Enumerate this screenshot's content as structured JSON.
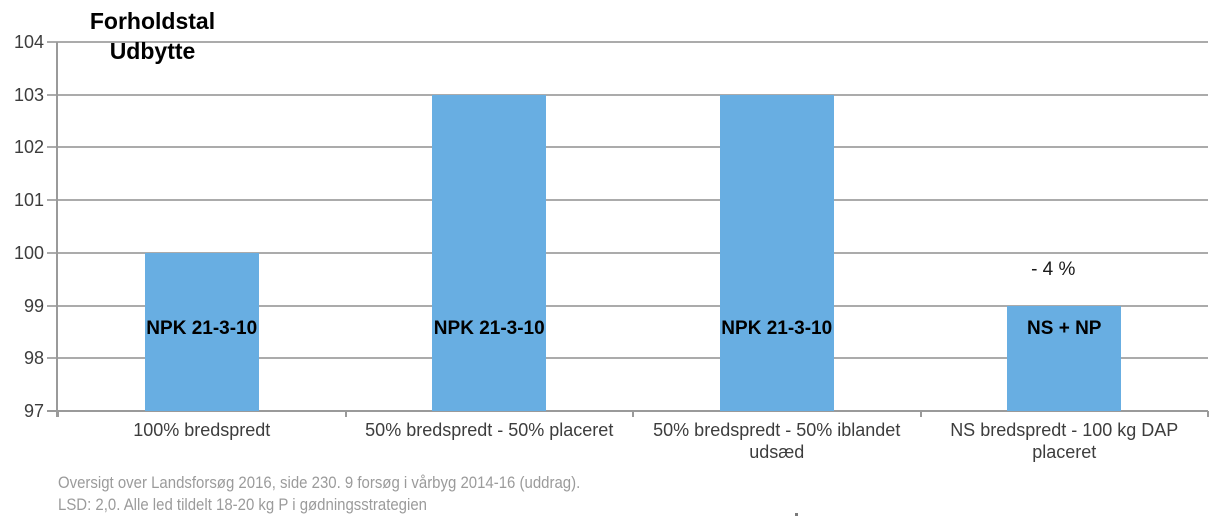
{
  "chart_data": {
    "type": "bar",
    "title_lines": [
      "Forholdstal",
      "Udbytte"
    ],
    "categories": [
      "100% bredspredt",
      "50% bredspredt - 50% placeret",
      "50% bredspredt - 50% iblandet udsæd",
      "NS bredspredt - 100 kg DAP placeret"
    ],
    "values": [
      100,
      103,
      103,
      99
    ],
    "bar_labels": [
      "NPK 21-3-10",
      "NPK 21-3-10",
      "NPK 21-3-10",
      "NS + NP"
    ],
    "annotations": [
      {
        "category_index": 3,
        "text": "- 4 %"
      }
    ],
    "ylim": [
      97,
      104
    ],
    "yticks": [
      104,
      103,
      102,
      101,
      100,
      99,
      98,
      97
    ],
    "grid": true,
    "legend": "none",
    "bar_color": "#68AEE2",
    "gridline_color": "#ababab",
    "axis_color": "#9a9a9a",
    "tick_label_color": "#3d3d3d"
  },
  "footnote": {
    "line1": "Oversigt over Landsforsøg 2016, side 230. 9 forsøg i vårbyg 2014-16 (uddrag).",
    "line2": "LSD: 2,0. Alle led tildelt 18-20 kg P i gødningsstrategien"
  }
}
